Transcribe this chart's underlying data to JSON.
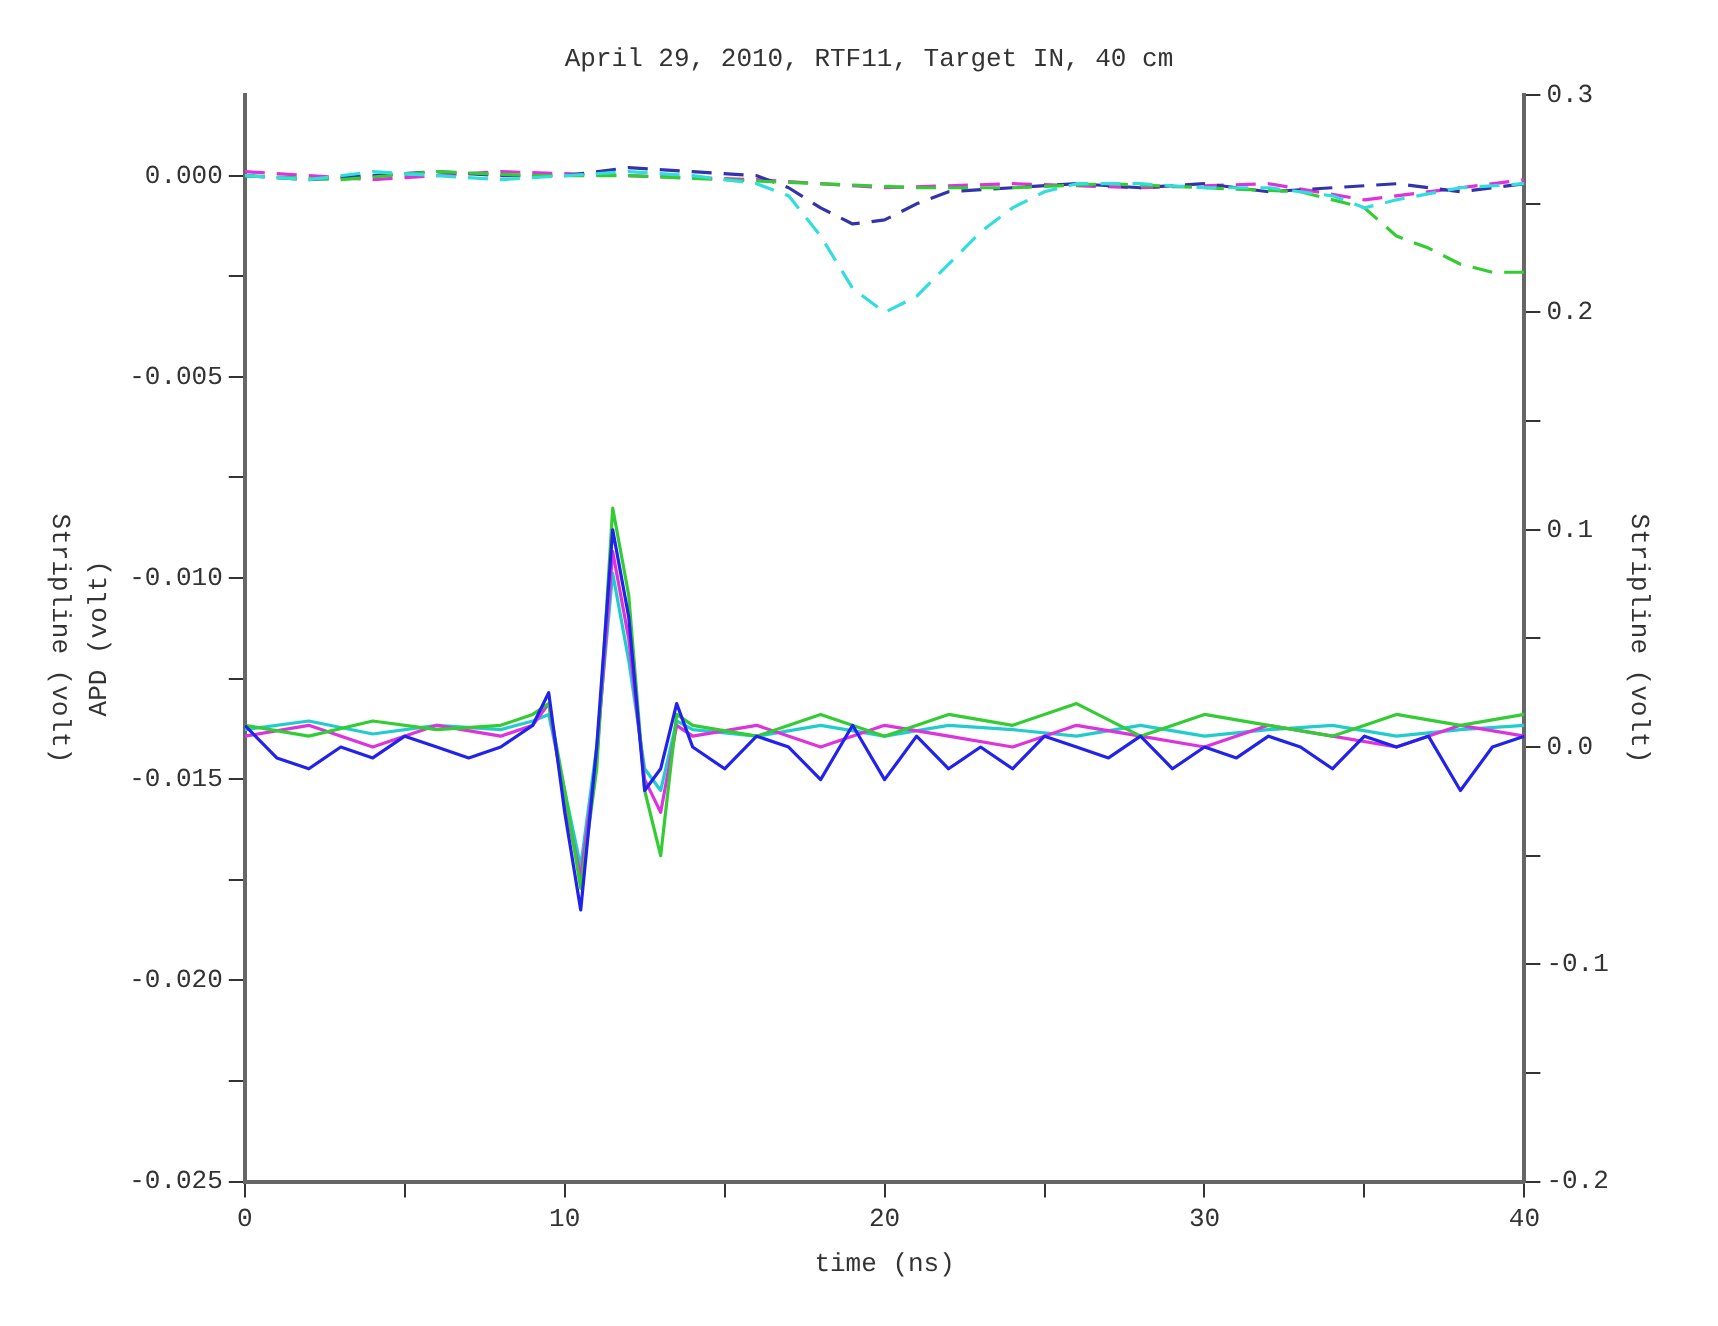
{
  "chart_data": {
    "type": "line",
    "title": "April 29, 2010, RTF11, Target IN, 40 cm",
    "xlabel": "time (ns)",
    "ylabel": "APD (volt)",
    "y2label": "Stripline (volt)",
    "annotations": [
      "Stripline (volt)"
    ],
    "xlim": [
      0,
      40
    ],
    "xticks": [
      0,
      {
        "value": 5,
        "label": null
      },
      10,
      {
        "value": 15,
        "label": null
      },
      20,
      {
        "value": 25,
        "label": null
      },
      30,
      {
        "value": 35,
        "label": null
      },
      40
    ],
    "ylim": [
      -0.025,
      0.002
    ],
    "yticks": [
      {
        "value": -0.025,
        "label": "-0.025"
      },
      {
        "value": -0.0225,
        "label": null
      },
      {
        "value": -0.02,
        "label": "-0.020"
      },
      {
        "value": -0.0175,
        "label": null
      },
      {
        "value": -0.015,
        "label": "-0.015"
      },
      {
        "value": -0.0125,
        "label": null
      },
      {
        "value": -0.01,
        "label": "-0.010"
      },
      {
        "value": -0.0075,
        "label": null
      },
      {
        "value": -0.005,
        "label": "-0.005"
      },
      {
        "value": -0.0025,
        "label": null
      },
      {
        "value": 0,
        "label": "0.000"
      }
    ],
    "y2lim": [
      -0.2,
      0.3
    ],
    "y2ticks": [
      -0.2,
      {
        "value": -0.15,
        "label": null
      },
      -0.1,
      {
        "value": -0.05,
        "label": null
      },
      {
        "value": 0,
        "label": "0.0"
      },
      {
        "value": 0.05,
        "label": null
      },
      0.1,
      {
        "value": 0.15,
        "label": null
      },
      0.2,
      {
        "value": 0.25,
        "label": null
      },
      0.3
    ],
    "grid": false,
    "legend": false,
    "marker": "none",
    "line_style": "solid",
    "series": [
      {
        "color": "#33dddd",
        "line_style": "dashed",
        "x": [
          0,
          2,
          4,
          6,
          8,
          10,
          12,
          14,
          16,
          17,
          18,
          19,
          20,
          21,
          22,
          23,
          24,
          25,
          26,
          28,
          30,
          32,
          34,
          35,
          36,
          38,
          40
        ],
        "values": [
          0,
          -0.0001,
          0.0001,
          0,
          -0.0001,
          0,
          0.0001,
          0,
          -0.0002,
          -0.0005,
          -0.0015,
          -0.0028,
          -0.0034,
          -0.003,
          -0.0022,
          -0.0014,
          -0.0008,
          -0.0004,
          -0.0002,
          -0.0002,
          -0.0003,
          -0.0003,
          -0.0005,
          -0.0008,
          -0.0006,
          -0.0003,
          -0.0002
        ]
      },
      {
        "color": "#33cc33",
        "line_style": "dashed",
        "x": [
          0,
          3,
          6,
          9,
          12,
          15,
          18,
          21,
          24,
          27,
          30,
          33,
          35,
          36,
          37,
          38,
          39,
          40
        ],
        "values": [
          0,
          -0.0001,
          0.0001,
          0,
          0,
          -0.0001,
          -0.0002,
          -0.0003,
          -0.0003,
          -0.0002,
          -0.0003,
          -0.0004,
          -0.0008,
          -0.0015,
          -0.0018,
          -0.0022,
          -0.0024,
          -0.0024
        ]
      },
      {
        "color": "#3333aa",
        "line_style": "dashed",
        "x": [
          0,
          2,
          4,
          6,
          8,
          10,
          12,
          14,
          16,
          17,
          18,
          19,
          20,
          21,
          22,
          24,
          26,
          28,
          30,
          32,
          34,
          36,
          38,
          40
        ],
        "values": [
          0,
          -0.0001,
          0,
          0.0001,
          0,
          0,
          0.0002,
          0.0001,
          0,
          -0.0003,
          -0.0008,
          -0.0012,
          -0.0011,
          -0.0007,
          -0.0004,
          -0.0003,
          -0.0002,
          -0.0003,
          -0.0002,
          -0.0004,
          -0.0003,
          -0.0002,
          -0.0004,
          -0.0002
        ]
      },
      {
        "color": "#dd33dd",
        "line_style": "dashed",
        "x": [
          0,
          4,
          8,
          12,
          16,
          20,
          24,
          28,
          32,
          35,
          38,
          40
        ],
        "values": [
          0.0001,
          -0.0001,
          0.0001,
          0,
          -0.0001,
          -0.0003,
          -0.0002,
          -0.0003,
          -0.0002,
          -0.0006,
          -0.0003,
          -0.0001
        ]
      },
      {
        "color": "#2222ee",
        "axis": "y2",
        "x": [
          0,
          1,
          2,
          3,
          4,
          5,
          6,
          7,
          8,
          9,
          9.5,
          10,
          10.5,
          11,
          11.5,
          12,
          12.5,
          13,
          13.5,
          14,
          15,
          16,
          17,
          18,
          19,
          20,
          21,
          22,
          23,
          24,
          25,
          26,
          27,
          28,
          29,
          30,
          31,
          32,
          33,
          34,
          35,
          36,
          37,
          38,
          39,
          40
        ],
        "values": [
          0.01,
          -0.005,
          -0.01,
          0,
          -0.005,
          0.005,
          0,
          -0.005,
          0,
          0.01,
          0.025,
          -0.03,
          -0.075,
          0,
          0.1,
          0.06,
          -0.02,
          -0.01,
          0.02,
          0,
          -0.01,
          0.005,
          0,
          -0.015,
          0.01,
          -0.015,
          0.005,
          -0.01,
          0,
          -0.01,
          0.005,
          0,
          -0.005,
          0.005,
          -0.01,
          0,
          -0.005,
          0.005,
          0,
          -0.01,
          0.005,
          0,
          0.005,
          -0.02,
          0,
          0.005
        ]
      },
      {
        "color": "#33cc33",
        "axis": "y2",
        "x": [
          0,
          2,
          4,
          6,
          8,
          9,
          9.5,
          10,
          10.5,
          11,
          11.5,
          12,
          12.5,
          13,
          13.5,
          14,
          16,
          18,
          20,
          22,
          24,
          26,
          28,
          30,
          32,
          34,
          36,
          38,
          40
        ],
        "values": [
          0.01,
          0.005,
          0.012,
          0.008,
          0.01,
          0.015,
          0.02,
          -0.02,
          -0.065,
          -0.01,
          0.11,
          0.07,
          -0.02,
          -0.05,
          0.015,
          0.01,
          0.005,
          0.015,
          0.005,
          0.015,
          0.01,
          0.02,
          0.005,
          0.015,
          0.01,
          0.005,
          0.015,
          0.01,
          0.015
        ]
      },
      {
        "color": "#dd33dd",
        "axis": "y2",
        "x": [
          0,
          2,
          4,
          6,
          8,
          9,
          9.5,
          10,
          10.5,
          11,
          11.5,
          12,
          12.5,
          13,
          13.5,
          14,
          16,
          18,
          20,
          22,
          24,
          26,
          28,
          30,
          32,
          34,
          36,
          38,
          40
        ],
        "values": [
          0.005,
          0.01,
          0,
          0.01,
          0.005,
          0.01,
          0.02,
          -0.025,
          -0.06,
          -0.005,
          0.09,
          0.05,
          -0.015,
          -0.03,
          0.01,
          0.005,
          0.01,
          0,
          0.01,
          0.005,
          0,
          0.01,
          0.005,
          0,
          0.01,
          0.005,
          0,
          0.01,
          0.005
        ]
      },
      {
        "color": "#22cccc",
        "axis": "y2",
        "x": [
          0,
          2,
          4,
          6,
          8,
          9,
          9.5,
          10,
          10.5,
          11,
          11.5,
          12,
          12.5,
          13,
          13.5,
          14,
          16,
          18,
          20,
          22,
          24,
          26,
          28,
          30,
          32,
          34,
          36,
          38,
          40
        ],
        "values": [
          0.008,
          0.012,
          0.006,
          0.01,
          0.008,
          0.012,
          0.015,
          -0.02,
          -0.055,
          0,
          0.08,
          0.04,
          -0.01,
          -0.02,
          0.012,
          0.008,
          0.005,
          0.01,
          0.005,
          0.01,
          0.008,
          0.005,
          0.01,
          0.005,
          0.008,
          0.01,
          0.005,
          0.008,
          0.01
        ]
      }
    ]
  }
}
